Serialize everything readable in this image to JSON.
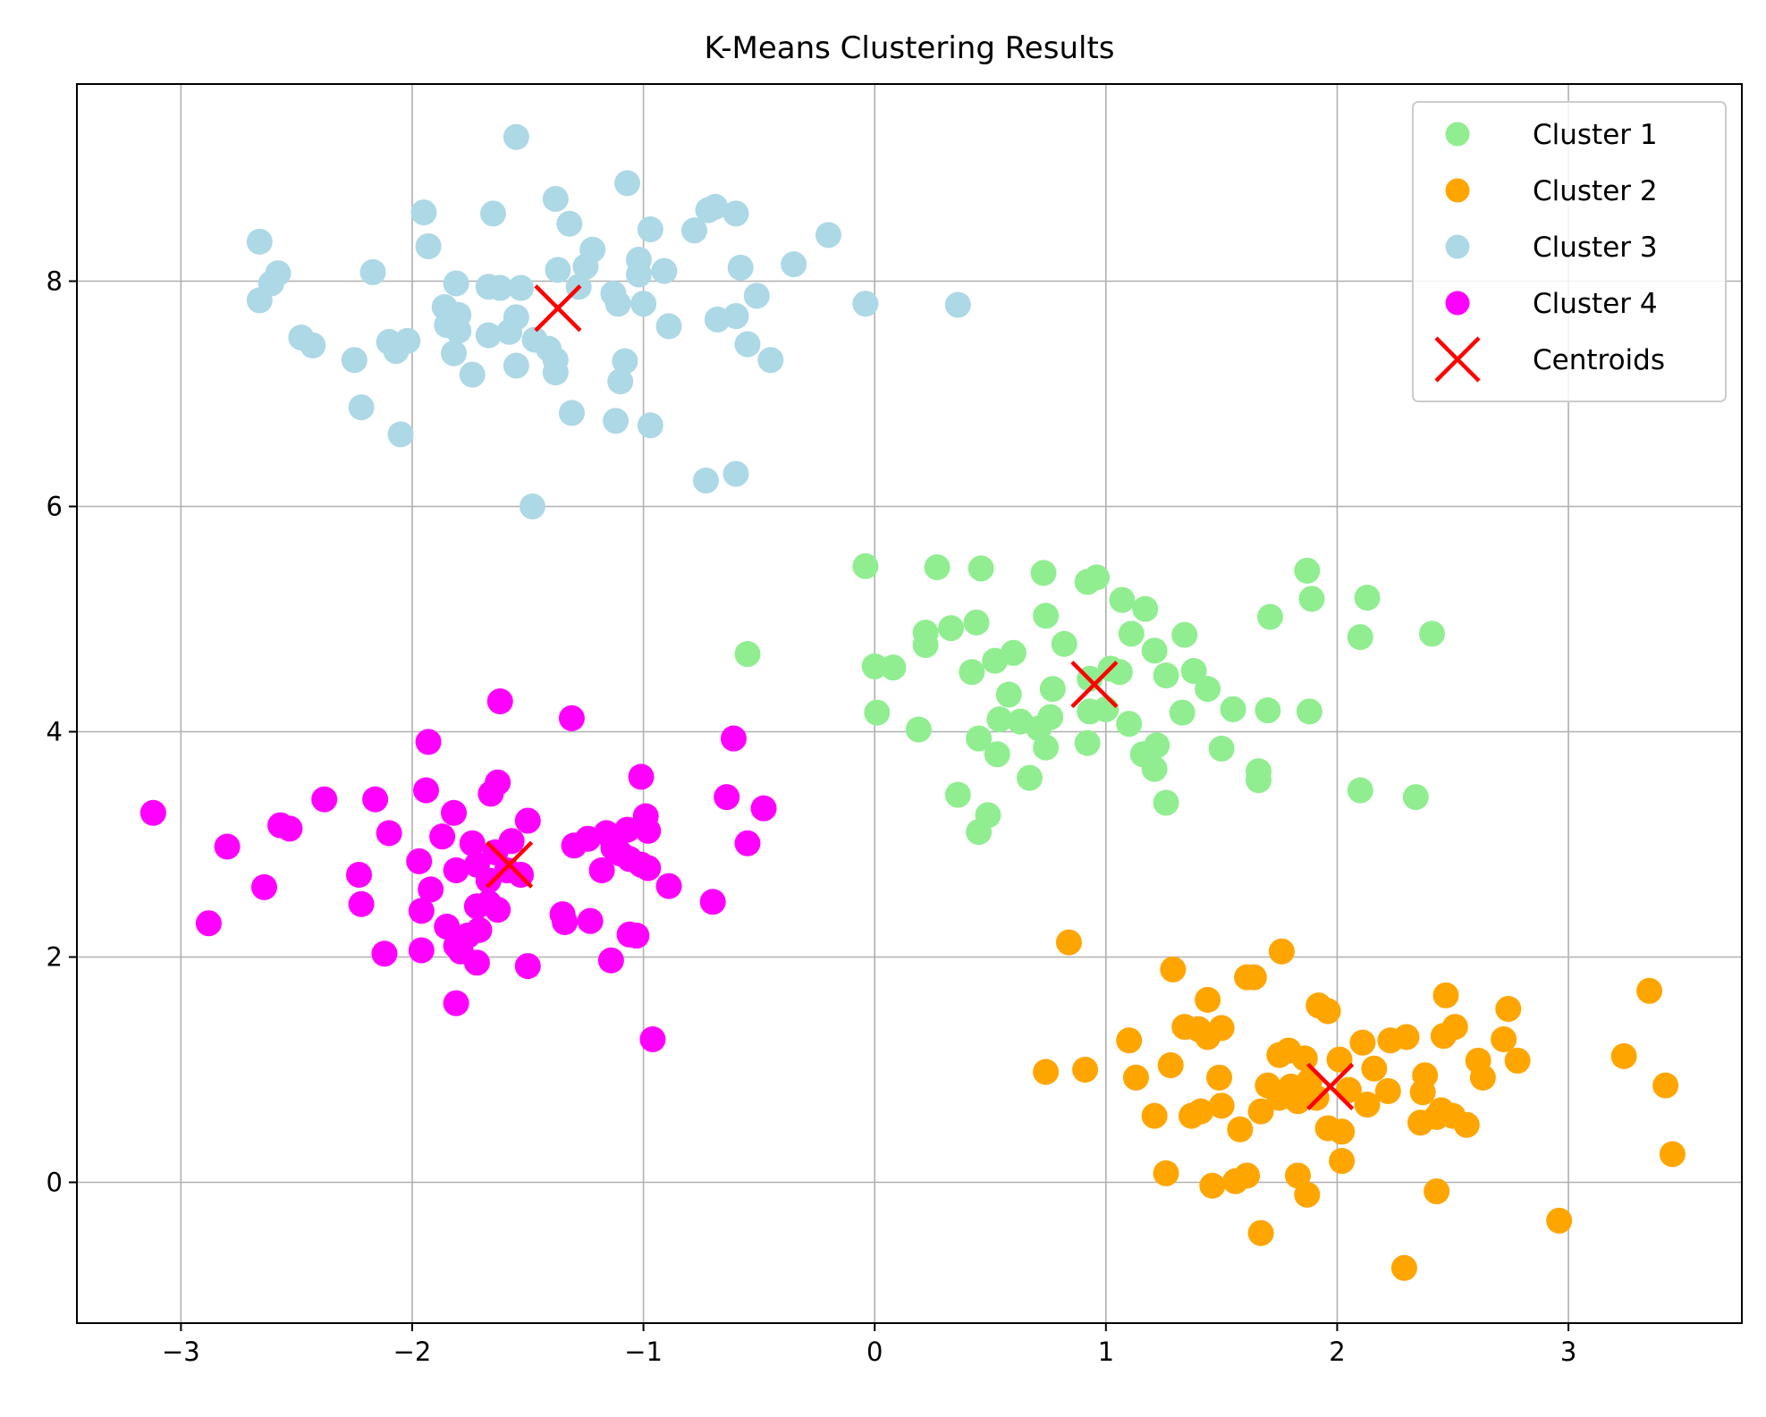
{
  "chart_data": {
    "type": "scatter",
    "title": "K-Means Clustering Results",
    "xlabel": "",
    "ylabel": "",
    "xlim": [
      -3.45,
      3.75
    ],
    "ylim": [
      -1.25,
      9.75
    ],
    "xticks": [
      -3,
      -2,
      -1,
      0,
      1,
      2,
      3
    ],
    "xtick_labels": [
      "−3",
      "−2",
      "−1",
      "0",
      "1",
      "2",
      "3"
    ],
    "yticks": [
      0,
      2,
      4,
      6,
      8
    ],
    "ytick_labels": [
      "0",
      "2",
      "4",
      "6",
      "8"
    ],
    "grid": true,
    "legend_position": "top-right",
    "series": [
      {
        "name": "Cluster 1",
        "color": "#90ee90",
        "marker": "circle",
        "points": [
          [
            -0.04,
            5.47
          ],
          [
            0.27,
            5.46
          ],
          [
            0.46,
            5.45
          ],
          [
            0.73,
            5.41
          ],
          [
            0.92,
            5.33
          ],
          [
            0.96,
            5.37
          ],
          [
            1.07,
            5.17
          ],
          [
            1.17,
            5.09
          ],
          [
            1.87,
            5.43
          ],
          [
            1.89,
            5.18
          ],
          [
            2.13,
            5.19
          ],
          [
            1.71,
            5.02
          ],
          [
            0.74,
            5.03
          ],
          [
            0.22,
            4.88
          ],
          [
            0.22,
            4.77
          ],
          [
            0.33,
            4.92
          ],
          [
            0.44,
            4.97
          ],
          [
            0.52,
            4.63
          ],
          [
            0.6,
            4.7
          ],
          [
            0.82,
            4.78
          ],
          [
            1.11,
            4.87
          ],
          [
            1.21,
            4.72
          ],
          [
            1.34,
            4.86
          ],
          [
            2.1,
            4.84
          ],
          [
            2.41,
            4.87
          ],
          [
            0.0,
            4.58
          ],
          [
            0.08,
            4.57
          ],
          [
            0.42,
            4.53
          ],
          [
            0.58,
            4.33
          ],
          [
            0.77,
            4.38
          ],
          [
            0.93,
            4.47
          ],
          [
            1.02,
            4.56
          ],
          [
            1.06,
            4.53
          ],
          [
            1.26,
            4.5
          ],
          [
            1.38,
            4.54
          ],
          [
            1.44,
            4.38
          ],
          [
            1.55,
            4.2
          ],
          [
            1.7,
            4.19
          ],
          [
            1.88,
            4.18
          ],
          [
            0.01,
            4.17
          ],
          [
            0.19,
            4.02
          ],
          [
            0.54,
            4.11
          ],
          [
            0.63,
            4.09
          ],
          [
            0.71,
            4.03
          ],
          [
            0.76,
            4.13
          ],
          [
            0.93,
            4.18
          ],
          [
            1.0,
            4.2
          ],
          [
            1.1,
            4.07
          ],
          [
            1.33,
            4.17
          ],
          [
            0.45,
            3.94
          ],
          [
            0.53,
            3.8
          ],
          [
            0.74,
            3.86
          ],
          [
            0.92,
            3.9
          ],
          [
            1.16,
            3.8
          ],
          [
            1.22,
            3.88
          ],
          [
            1.21,
            3.67
          ],
          [
            1.5,
            3.85
          ],
          [
            1.66,
            3.65
          ],
          [
            1.66,
            3.57
          ],
          [
            0.67,
            3.59
          ],
          [
            0.36,
            3.44
          ],
          [
            0.49,
            3.26
          ],
          [
            0.45,
            3.11
          ],
          [
            1.26,
            3.37
          ],
          [
            2.1,
            3.48
          ],
          [
            2.34,
            3.42
          ],
          [
            -0.55,
            4.69
          ]
        ]
      },
      {
        "name": "Cluster 2",
        "color": "#ffa500",
        "marker": "circle",
        "points": [
          [
            0.84,
            2.13
          ],
          [
            1.29,
            1.89
          ],
          [
            1.61,
            1.82
          ],
          [
            1.64,
            1.82
          ],
          [
            1.76,
            2.05
          ],
          [
            1.92,
            1.57
          ],
          [
            1.96,
            1.52
          ],
          [
            2.47,
            1.66
          ],
          [
            3.35,
            1.7
          ],
          [
            0.91,
            1.0
          ],
          [
            1.1,
            1.26
          ],
          [
            1.13,
            0.93
          ],
          [
            1.28,
            1.04
          ],
          [
            1.34,
            1.38
          ],
          [
            1.4,
            1.36
          ],
          [
            1.44,
            1.62
          ],
          [
            1.44,
            1.29
          ],
          [
            1.5,
            1.37
          ],
          [
            1.49,
            0.93
          ],
          [
            1.75,
            1.13
          ],
          [
            1.79,
            1.17
          ],
          [
            1.86,
            1.1
          ],
          [
            2.01,
            1.09
          ],
          [
            2.11,
            1.24
          ],
          [
            2.16,
            1.01
          ],
          [
            2.23,
            1.26
          ],
          [
            2.3,
            1.29
          ],
          [
            2.38,
            0.95
          ],
          [
            2.46,
            1.3
          ],
          [
            2.51,
            1.38
          ],
          [
            2.61,
            1.08
          ],
          [
            2.63,
            0.93
          ],
          [
            2.72,
            1.27
          ],
          [
            2.74,
            1.54
          ],
          [
            2.78,
            1.08
          ],
          [
            3.24,
            1.12
          ],
          [
            0.74,
            0.98
          ],
          [
            1.21,
            0.59
          ],
          [
            1.37,
            0.59
          ],
          [
            1.41,
            0.63
          ],
          [
            1.5,
            0.68
          ],
          [
            1.58,
            0.47
          ],
          [
            1.67,
            0.63
          ],
          [
            1.7,
            0.86
          ],
          [
            1.75,
            0.75
          ],
          [
            1.8,
            0.85
          ],
          [
            1.83,
            0.72
          ],
          [
            1.88,
            0.9
          ],
          [
            1.91,
            0.75
          ],
          [
            1.96,
            0.48
          ],
          [
            2.02,
            0.45
          ],
          [
            2.05,
            0.82
          ],
          [
            2.13,
            0.69
          ],
          [
            2.22,
            0.81
          ],
          [
            2.36,
            0.53
          ],
          [
            2.37,
            0.8
          ],
          [
            2.43,
            0.58
          ],
          [
            2.45,
            0.64
          ],
          [
            2.5,
            0.59
          ],
          [
            2.56,
            0.51
          ],
          [
            2.02,
            0.19
          ],
          [
            1.26,
            0.08
          ],
          [
            1.46,
            -0.03
          ],
          [
            1.56,
            0.01
          ],
          [
            1.61,
            0.06
          ],
          [
            1.83,
            0.06
          ],
          [
            1.87,
            -0.11
          ],
          [
            2.43,
            -0.08
          ],
          [
            1.67,
            -0.45
          ],
          [
            2.96,
            -0.34
          ],
          [
            2.29,
            -0.76
          ],
          [
            3.42,
            0.86
          ],
          [
            3.45,
            0.25
          ]
        ]
      },
      {
        "name": "Cluster 3",
        "color": "#add8e6",
        "marker": "circle",
        "points": [
          [
            -1.55,
            9.28
          ],
          [
            -1.07,
            8.87
          ],
          [
            -1.38,
            8.73
          ],
          [
            -1.95,
            8.61
          ],
          [
            -1.65,
            8.6
          ],
          [
            -0.69,
            8.66
          ],
          [
            -0.72,
            8.63
          ],
          [
            -0.6,
            8.6
          ],
          [
            -1.32,
            8.51
          ],
          [
            -0.78,
            8.45
          ],
          [
            -0.97,
            8.46
          ],
          [
            -0.2,
            8.41
          ],
          [
            -2.66,
            8.35
          ],
          [
            -1.93,
            8.31
          ],
          [
            -1.22,
            8.28
          ],
          [
            -1.25,
            8.13
          ],
          [
            -1.02,
            8.19
          ],
          [
            -0.35,
            8.15
          ],
          [
            -0.58,
            8.12
          ],
          [
            -2.58,
            8.07
          ],
          [
            -2.17,
            8.08
          ],
          [
            -1.37,
            8.1
          ],
          [
            -1.02,
            8.06
          ],
          [
            -0.91,
            8.09
          ],
          [
            -2.61,
            7.98
          ],
          [
            -2.66,
            7.83
          ],
          [
            -1.81,
            7.98
          ],
          [
            -1.67,
            7.95
          ],
          [
            -1.62,
            7.94
          ],
          [
            -1.53,
            7.94
          ],
          [
            -1.28,
            7.95
          ],
          [
            -1.13,
            7.89
          ],
          [
            -1.11,
            7.8
          ],
          [
            -1.0,
            7.8
          ],
          [
            -0.51,
            7.87
          ],
          [
            -0.04,
            7.8
          ],
          [
            0.36,
            7.79
          ],
          [
            -1.86,
            7.77
          ],
          [
            -1.8,
            7.7
          ],
          [
            -1.55,
            7.68
          ],
          [
            -0.68,
            7.66
          ],
          [
            -0.6,
            7.69
          ],
          [
            -1.85,
            7.61
          ],
          [
            -1.8,
            7.56
          ],
          [
            -1.67,
            7.52
          ],
          [
            -1.58,
            7.55
          ],
          [
            -0.89,
            7.6
          ],
          [
            -2.48,
            7.5
          ],
          [
            -2.43,
            7.43
          ],
          [
            -2.1,
            7.46
          ],
          [
            -2.07,
            7.38
          ],
          [
            -2.02,
            7.47
          ],
          [
            -1.82,
            7.36
          ],
          [
            -1.47,
            7.48
          ],
          [
            -1.41,
            7.4
          ],
          [
            -0.55,
            7.44
          ],
          [
            -0.45,
            7.3
          ],
          [
            -2.25,
            7.3
          ],
          [
            -1.55,
            7.25
          ],
          [
            -1.38,
            7.3
          ],
          [
            -1.38,
            7.19
          ],
          [
            -1.08,
            7.29
          ],
          [
            -1.1,
            7.11
          ],
          [
            -1.74,
            7.17
          ],
          [
            -2.22,
            6.88
          ],
          [
            -1.31,
            6.83
          ],
          [
            -1.12,
            6.76
          ],
          [
            -0.97,
            6.72
          ],
          [
            -2.05,
            6.64
          ],
          [
            -0.73,
            6.23
          ],
          [
            -0.6,
            6.29
          ],
          [
            -1.48,
            6.0
          ]
        ]
      },
      {
        "name": "Cluster 4",
        "color": "#ff00ff",
        "marker": "circle",
        "points": [
          [
            -1.62,
            4.27
          ],
          [
            -1.31,
            4.12
          ],
          [
            -1.93,
            3.91
          ],
          [
            -0.61,
            3.94
          ],
          [
            -1.63,
            3.55
          ],
          [
            -1.66,
            3.45
          ],
          [
            -1.01,
            3.6
          ],
          [
            -0.64,
            3.42
          ],
          [
            -0.48,
            3.32
          ],
          [
            -1.94,
            3.48
          ],
          [
            -2.38,
            3.4
          ],
          [
            -2.16,
            3.4
          ],
          [
            -3.12,
            3.28
          ],
          [
            -2.57,
            3.17
          ],
          [
            -2.53,
            3.14
          ],
          [
            -2.1,
            3.1
          ],
          [
            -1.82,
            3.28
          ],
          [
            -1.5,
            3.21
          ],
          [
            -1.24,
            3.05
          ],
          [
            -1.16,
            3.1
          ],
          [
            -1.07,
            3.13
          ],
          [
            -0.99,
            3.25
          ],
          [
            -0.98,
            3.12
          ],
          [
            -0.55,
            3.01
          ],
          [
            -2.8,
            2.98
          ],
          [
            -1.87,
            3.07
          ],
          [
            -1.74,
            3.01
          ],
          [
            -1.64,
            2.93
          ],
          [
            -1.57,
            3.03
          ],
          [
            -1.3,
            2.99
          ],
          [
            -1.13,
            2.97
          ],
          [
            -1.06,
            2.87
          ],
          [
            -1.01,
            2.82
          ],
          [
            -0.98,
            2.79
          ],
          [
            -2.23,
            2.73
          ],
          [
            -1.97,
            2.85
          ],
          [
            -1.81,
            2.77
          ],
          [
            -1.72,
            2.82
          ],
          [
            -1.67,
            2.68
          ],
          [
            -1.59,
            2.77
          ],
          [
            -1.53,
            2.73
          ],
          [
            -1.18,
            2.77
          ],
          [
            -1.1,
            2.92
          ],
          [
            -2.64,
            2.62
          ],
          [
            -1.92,
            2.6
          ],
          [
            -0.89,
            2.63
          ],
          [
            -1.67,
            2.48
          ],
          [
            -1.72,
            2.45
          ],
          [
            -0.7,
            2.49
          ],
          [
            -2.22,
            2.47
          ],
          [
            -1.96,
            2.41
          ],
          [
            -1.63,
            2.42
          ],
          [
            -1.35,
            2.38
          ],
          [
            -1.23,
            2.32
          ],
          [
            -2.88,
            2.3
          ],
          [
            -1.85,
            2.27
          ],
          [
            -1.76,
            2.19
          ],
          [
            -1.71,
            2.24
          ],
          [
            -1.06,
            2.2
          ],
          [
            -1.03,
            2.19
          ],
          [
            -2.12,
            2.03
          ],
          [
            -1.96,
            2.06
          ],
          [
            -1.81,
            2.1
          ],
          [
            -1.79,
            2.05
          ],
          [
            -1.72,
            1.95
          ],
          [
            -1.5,
            1.92
          ],
          [
            -1.14,
            1.97
          ],
          [
            -1.81,
            1.59
          ],
          [
            -0.96,
            1.27
          ],
          [
            -1.34,
            2.31
          ]
        ]
      },
      {
        "name": "Centroids",
        "color": "#ff0000",
        "marker": "x",
        "points": [
          [
            0.95,
            4.42
          ],
          [
            1.97,
            0.85
          ],
          [
            -1.37,
            7.76
          ],
          [
            -1.58,
            2.82
          ]
        ]
      }
    ]
  }
}
